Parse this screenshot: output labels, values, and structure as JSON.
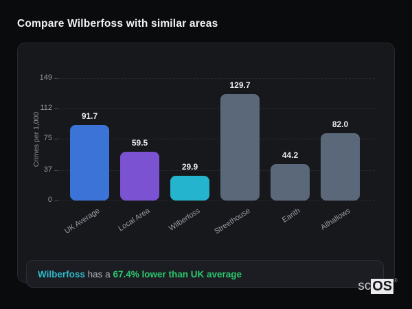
{
  "page": {
    "title": "Compare Wilberfoss with similar areas",
    "background": "#0a0b0d"
  },
  "card": {
    "background": "#17181c",
    "border": "#26292f"
  },
  "chart_data": {
    "type": "bar",
    "title": "Compare Wilberfoss with similar areas",
    "categories": [
      "UK Average",
      "Local Area",
      "Wilberfoss",
      "Streethouse",
      "Earith",
      "Allhallows"
    ],
    "values": [
      91.7,
      59.5,
      29.9,
      129.7,
      44.2,
      82.0
    ],
    "value_labels": [
      "91.7",
      "59.5",
      "29.9",
      "129.7",
      "44.2",
      "82.0"
    ],
    "bar_colors": [
      "#3b74d6",
      "#7a52d2",
      "#25b4cd",
      "#5b6879",
      "#5b6879",
      "#5b6879"
    ],
    "xlabel": "",
    "ylabel": "Crimes per 1,000",
    "yticks": [
      0,
      37,
      75,
      112,
      149
    ],
    "ylim": [
      0,
      149
    ],
    "grid": "horizontal-dashed",
    "legend": "none",
    "text_colors": {
      "value_label": "#e9eaec",
      "tick_label": "#94989f",
      "axis_label": "#8e939a"
    }
  },
  "note": {
    "area": "Wilberfoss",
    "connector": " has a ",
    "stat": "67.4% lower than UK average",
    "area_color": "#2fb9c9",
    "connector_color": "#b0b4bb",
    "stat_color": "#2bc76e"
  },
  "logo": {
    "prefix": "sc",
    "suffix": "OS",
    "registered": "®"
  }
}
